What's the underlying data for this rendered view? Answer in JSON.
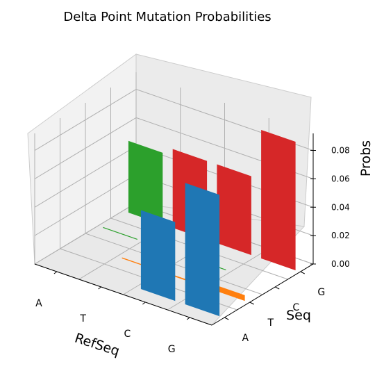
{
  "chart_data": {
    "type": "bar3d",
    "title": "Delta Point Mutation Probabilities",
    "xlabel": "RefSeq",
    "ylabel": "Seq",
    "zlabel": "Probs",
    "x_categories": [
      "A",
      "T",
      "C",
      "G"
    ],
    "y_categories": [
      "A",
      "T",
      "C",
      "G"
    ],
    "z_ticks": [
      "0.00",
      "0.02",
      "0.04",
      "0.06",
      "0.08"
    ],
    "zlim": [
      0,
      0.092
    ],
    "grid": true,
    "series": [
      {
        "color": "#1f77b4",
        "points": [
          {
            "ref": "C",
            "seq": "A",
            "prob": 0.055
          },
          {
            "ref": "G",
            "seq": "A",
            "prob": 0.085
          }
        ]
      },
      {
        "color": "#ff7f0e",
        "points": [
          {
            "ref": "T",
            "seq": "T",
            "prob": 0.0002
          },
          {
            "ref": "C",
            "seq": "T",
            "prob": 0.0004
          },
          {
            "ref": "G",
            "seq": "T",
            "prob": 0.0035
          }
        ]
      },
      {
        "color": "#2ca02c",
        "points": [
          {
            "ref": "A",
            "seq": "C",
            "prob": 0.0001
          },
          {
            "ref": "C",
            "seq": "C",
            "prob": 0.0001
          },
          {
            "ref": "A",
            "seq": "G",
            "prob": 0.05
          }
        ]
      },
      {
        "color": "#d62728",
        "points": [
          {
            "ref": "T",
            "seq": "G",
            "prob": 0.055
          },
          {
            "ref": "C",
            "seq": "G",
            "prob": 0.055
          },
          {
            "ref": "G",
            "seq": "G",
            "prob": 0.09
          }
        ]
      }
    ]
  }
}
